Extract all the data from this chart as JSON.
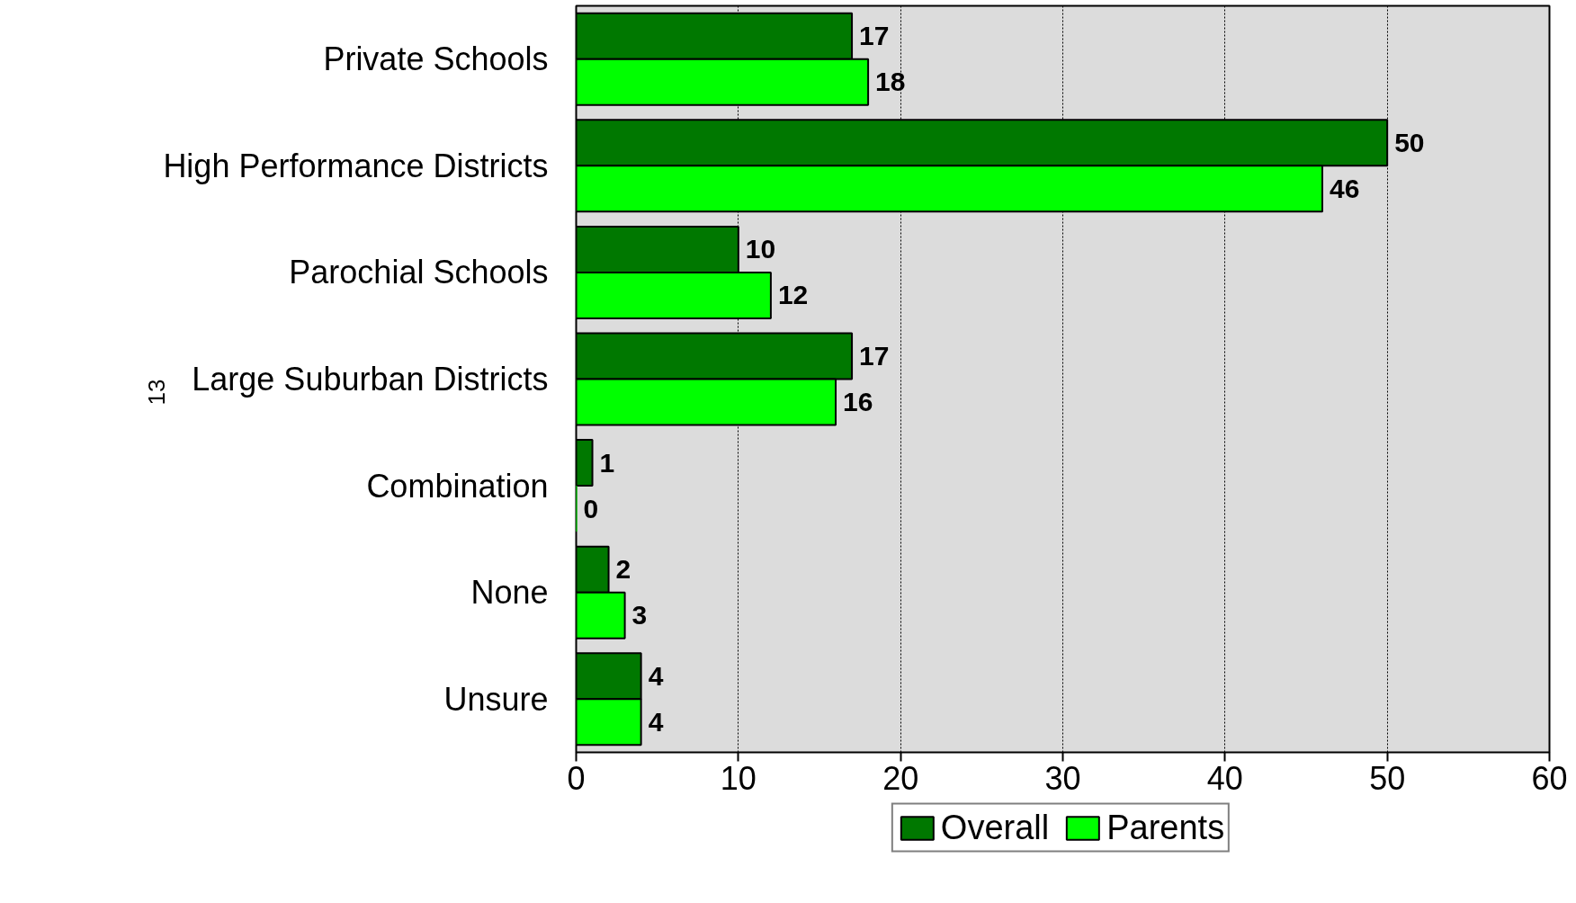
{
  "chart_data": {
    "type": "bar",
    "orientation": "horizontal",
    "categories": [
      "Private Schools",
      "High Performance Districts",
      "Parochial Schools",
      "Large Suburban Districts",
      "Combination",
      "None",
      "Unsure"
    ],
    "series": [
      {
        "name": "Overall",
        "color": "#007800",
        "values": [
          17,
          50,
          10,
          17,
          1,
          2,
          4
        ]
      },
      {
        "name": "Parents",
        "color": "#00ff00",
        "values": [
          18,
          46,
          12,
          16,
          0,
          3,
          4
        ]
      }
    ],
    "xlim": [
      0,
      60
    ],
    "xticks": [
      0,
      10,
      20,
      30,
      40,
      50,
      60
    ],
    "grid": "x",
    "legend": "bottom",
    "data_labels": true,
    "annotations": [
      "13"
    ]
  }
}
